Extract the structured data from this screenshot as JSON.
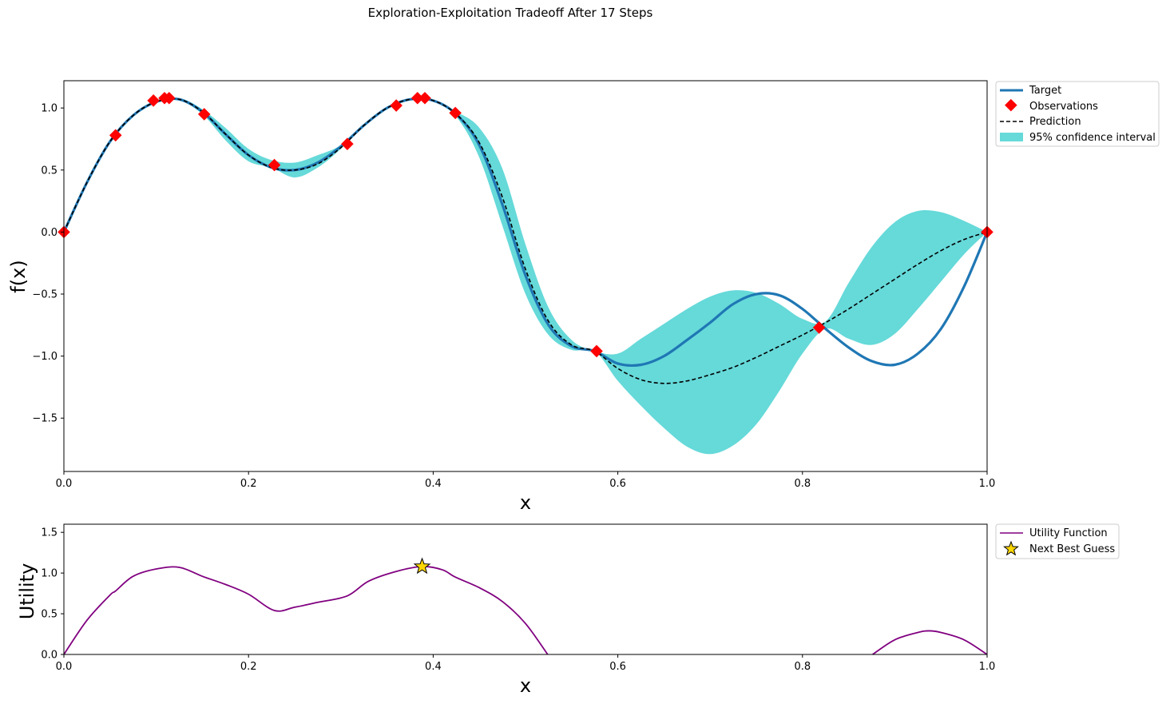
{
  "figure": {
    "suptitle": "Exploration-Exploitation Tradeoff After 17 Steps"
  },
  "colors": {
    "target": "#1f77b4",
    "observations": "#ff0000",
    "prediction": "#000000",
    "confidence": "#40d0d0",
    "utility": "#800080",
    "next_best": "#ffd700"
  },
  "chart_data": [
    {
      "type": "line",
      "panel": "gp",
      "xlabel": "x",
      "ylabel": "f(x)",
      "xlim": [
        0.0,
        1.0
      ],
      "ylim": [
        -1.93,
        1.22
      ],
      "xticks": [
        0.0,
        0.2,
        0.4,
        0.6,
        0.8,
        1.0
      ],
      "xtick_labels": [
        "0.0",
        "0.2",
        "0.4",
        "0.6",
        "0.8",
        "1.0"
      ],
      "yticks": [
        -1.5,
        -1.0,
        -0.5,
        0.0,
        0.5,
        1.0
      ],
      "ytick_labels": [
        "−1.5",
        "−1.0",
        "−0.5",
        "0.0",
        "0.5",
        "1.0"
      ],
      "grid": false,
      "legend_position": "outside upper right",
      "legend": [
        "Target",
        "Observations",
        "Prediction",
        "95% confidence interval"
      ],
      "x": [
        0.0,
        0.025,
        0.05,
        0.075,
        0.1,
        0.125,
        0.15,
        0.175,
        0.2,
        0.225,
        0.25,
        0.275,
        0.3,
        0.325,
        0.35,
        0.375,
        0.4,
        0.425,
        0.45,
        0.475,
        0.5,
        0.525,
        0.55,
        0.575,
        0.6,
        0.625,
        0.65,
        0.675,
        0.7,
        0.725,
        0.75,
        0.775,
        0.8,
        0.825,
        0.85,
        0.875,
        0.9,
        0.925,
        0.95,
        0.975,
        1.0
      ],
      "series": [
        {
          "name": "Target",
          "style": "solid",
          "values": [
            0.0,
            0.4,
            0.73,
            0.94,
            1.05,
            1.07,
            0.97,
            0.79,
            0.62,
            0.52,
            0.5,
            0.56,
            0.69,
            0.86,
            1.0,
            1.07,
            1.06,
            0.95,
            0.7,
            0.22,
            -0.35,
            -0.75,
            -0.92,
            -0.96,
            -1.06,
            -1.07,
            -1.0,
            -0.87,
            -0.73,
            -0.58,
            -0.5,
            -0.51,
            -0.62,
            -0.78,
            -0.93,
            -1.04,
            -1.07,
            -0.98,
            -0.78,
            -0.44,
            0.0
          ]
        },
        {
          "name": "Prediction",
          "style": "dashed",
          "values": [
            0.0,
            0.4,
            0.73,
            0.94,
            1.05,
            1.07,
            0.97,
            0.79,
            0.62,
            0.52,
            0.5,
            0.55,
            0.68,
            0.86,
            1.0,
            1.07,
            1.06,
            0.95,
            0.72,
            0.28,
            -0.3,
            -0.72,
            -0.91,
            -0.96,
            -1.1,
            -1.19,
            -1.22,
            -1.2,
            -1.15,
            -1.09,
            -1.01,
            -0.92,
            -0.83,
            -0.73,
            -0.62,
            -0.5,
            -0.38,
            -0.26,
            -0.15,
            -0.06,
            0.0
          ]
        }
      ],
      "confidence_interval": {
        "name": "95% confidence interval",
        "lower": [
          0.0,
          0.39,
          0.72,
          0.93,
          1.04,
          1.06,
          0.95,
          0.74,
          0.57,
          0.52,
          0.44,
          0.52,
          0.67,
          0.86,
          1.0,
          1.07,
          1.06,
          0.93,
          0.6,
          0.05,
          -0.5,
          -0.83,
          -0.95,
          -0.96,
          -1.2,
          -1.4,
          -1.58,
          -1.73,
          -1.79,
          -1.72,
          -1.55,
          -1.28,
          -0.98,
          -0.78,
          -0.86,
          -0.91,
          -0.82,
          -0.62,
          -0.4,
          -0.18,
          0.0
        ],
        "upper": [
          0.0,
          0.41,
          0.74,
          0.95,
          1.06,
          1.08,
          0.99,
          0.84,
          0.67,
          0.58,
          0.56,
          0.62,
          0.7,
          0.86,
          1.0,
          1.07,
          1.06,
          0.97,
          0.84,
          0.51,
          -0.1,
          -0.61,
          -0.87,
          -0.96,
          -0.98,
          -0.86,
          -0.74,
          -0.62,
          -0.52,
          -0.47,
          -0.49,
          -0.58,
          -0.7,
          -0.72,
          -0.41,
          -0.12,
          0.08,
          0.17,
          0.16,
          0.09,
          0.0
        ]
      },
      "observations": {
        "name": "Observations",
        "x": [
          0.0,
          0.056,
          0.097,
          0.109,
          0.114,
          0.152,
          0.228,
          0.307,
          0.36,
          0.383,
          0.391,
          0.424,
          0.577,
          0.818,
          1.0
        ],
        "y": [
          0.0,
          0.78,
          1.06,
          1.08,
          1.08,
          0.95,
          0.54,
          0.71,
          1.02,
          1.08,
          1.08,
          0.96,
          -0.96,
          -0.77,
          0.0
        ]
      }
    },
    {
      "type": "line",
      "panel": "utility",
      "xlabel": "x",
      "ylabel": "Utility",
      "xlim": [
        0.0,
        1.0
      ],
      "ylim": [
        0.0,
        1.6
      ],
      "xticks": [
        0.0,
        0.2,
        0.4,
        0.6,
        0.8,
        1.0
      ],
      "xtick_labels": [
        "0.0",
        "0.2",
        "0.4",
        "0.6",
        "0.8",
        "1.0"
      ],
      "yticks": [
        0.0,
        0.5,
        1.0,
        1.5
      ],
      "ytick_labels": [
        "0.0",
        "0.5",
        "1.0",
        "1.5"
      ],
      "grid": false,
      "legend_position": "outside upper right",
      "legend": [
        "Utility Function",
        "Next Best Guess"
      ],
      "series": [
        {
          "name": "Utility Function",
          "segments": [
            {
              "x": [
                0.0,
                0.025,
                0.05,
                0.056,
                0.075,
                0.1,
                0.125,
                0.15,
                0.175,
                0.2,
                0.228,
                0.25,
                0.275,
                0.307,
                0.33,
                0.36,
                0.388,
                0.41,
                0.424,
                0.45,
                0.475,
                0.5,
                0.524
              ],
              "y": [
                0.0,
                0.42,
                0.73,
                0.78,
                0.96,
                1.05,
                1.07,
                0.96,
                0.86,
                0.74,
                0.54,
                0.58,
                0.64,
                0.72,
                0.9,
                1.02,
                1.08,
                1.04,
                0.95,
                0.82,
                0.65,
                0.38,
                0.0
              ]
            },
            {
              "x": [
                0.876,
                0.9,
                0.925,
                0.937,
                0.95,
                0.975,
                1.0
              ],
              "y": [
                0.0,
                0.18,
                0.27,
                0.29,
                0.27,
                0.18,
                0.0
              ]
            }
          ]
        }
      ],
      "next_best_guess": {
        "name": "Next Best Guess",
        "x": 0.388,
        "y": 1.08
      }
    }
  ]
}
